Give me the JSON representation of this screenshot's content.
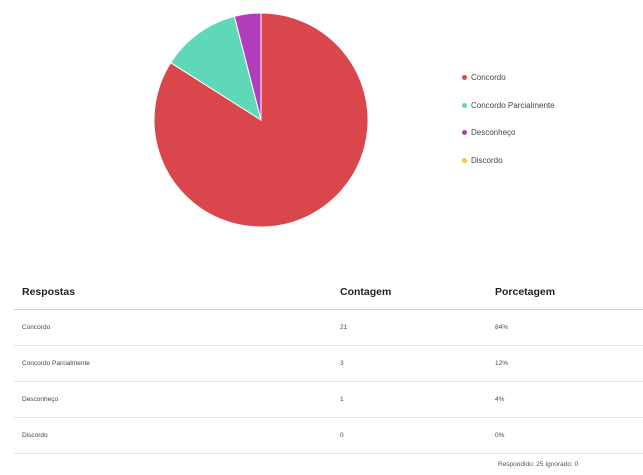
{
  "chart_data": {
    "type": "pie",
    "slices": [
      {
        "label": "Concordo",
        "value": 21,
        "color": "#d9464b"
      },
      {
        "label": "Concordo Parcialmente",
        "value": 3,
        "color": "#5ed8b9"
      },
      {
        "label": "Desconheço",
        "value": 1,
        "color": "#b23dbb"
      },
      {
        "label": "Discordo",
        "value": 0,
        "color": "#f6c545"
      }
    ]
  },
  "table": {
    "headers": {
      "response": "Respostas",
      "count": "Contagem",
      "percent": "Porcetagem"
    },
    "rows": [
      {
        "response": "Concordo",
        "count": "21",
        "percent": "84%"
      },
      {
        "response": "Concordo Parcialmente",
        "count": "3",
        "percent": "12%"
      },
      {
        "response": "Desconheço",
        "count": "1",
        "percent": "4%"
      },
      {
        "response": "Discordo",
        "count": "0",
        "percent": "0%"
      }
    ]
  },
  "footer": {
    "text": "Respondido: 25  Ignorado: 0"
  }
}
